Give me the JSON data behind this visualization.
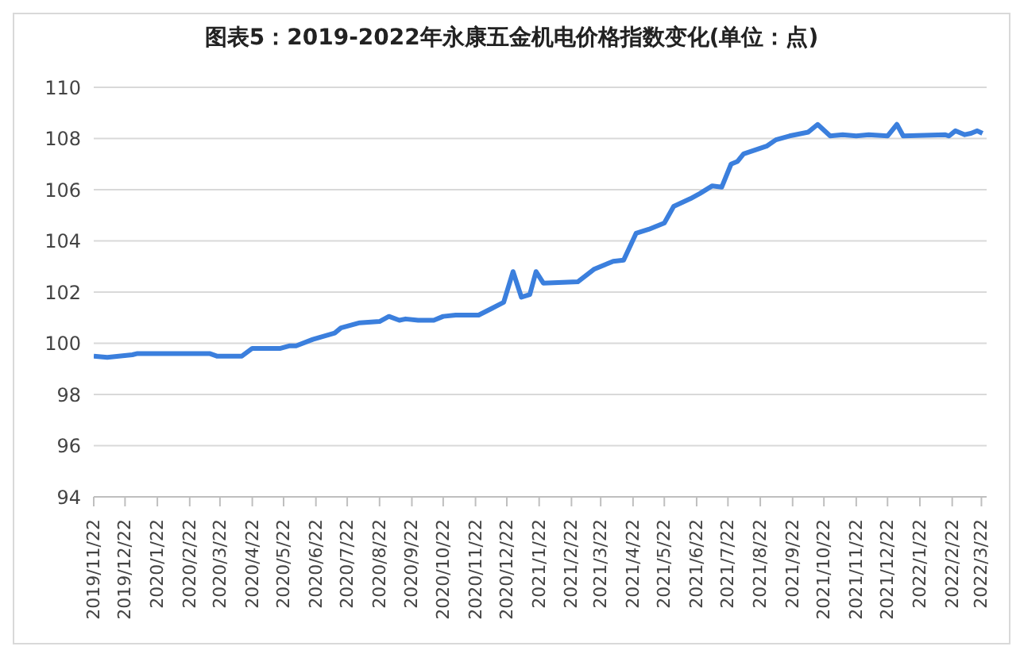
{
  "chart_data": {
    "type": "line",
    "title": "图表5：2019-2022年永康五金机电价格指数变化(单位：点)",
    "x": [
      "2019-11-22",
      "2019-12-05",
      "2019-12-29",
      "2020-01-03",
      "2020-03-12",
      "2020-03-19",
      "2020-04-12",
      "2020-04-22",
      "2020-05-19",
      "2020-05-28",
      "2020-06-03",
      "2020-06-19",
      "2020-07-10",
      "2020-07-16",
      "2020-08-03",
      "2020-08-22",
      "2020-08-31",
      "2020-09-10",
      "2020-09-16",
      "2020-09-28",
      "2020-10-13",
      "2020-10-22",
      "2020-11-03",
      "2020-11-25",
      "2020-12-07",
      "2020-12-19",
      "2020-12-28",
      "2021-01-05",
      "2021-01-13",
      "2021-01-19",
      "2021-01-26",
      "2021-02-28",
      "2021-03-16",
      "2021-04-03",
      "2021-04-13",
      "2021-04-25",
      "2021-05-07",
      "2021-05-22",
      "2021-05-31",
      "2021-06-16",
      "2021-06-25",
      "2021-07-07",
      "2021-07-16",
      "2021-07-25",
      "2021-07-31",
      "2021-08-06",
      "2021-08-28",
      "2021-09-06",
      "2021-09-19",
      "2021-10-07",
      "2021-10-16",
      "2021-10-28",
      "2021-11-09",
      "2021-11-22",
      "2021-12-04",
      "2021-12-22",
      "2021-12-31",
      "2022-01-06",
      "2022-02-15",
      "2022-02-19",
      "2022-02-25",
      "2022-03-06",
      "2022-03-12",
      "2022-03-18",
      "2022-03-23"
    ],
    "series": [
      {
        "color": "#3b7fdd",
        "values": [
          99.5,
          99.45,
          99.55,
          99.6,
          99.6,
          99.5,
          99.5,
          99.8,
          99.8,
          99.9,
          99.9,
          100.15,
          100.4,
          100.6,
          100.8,
          100.85,
          101.05,
          100.9,
          100.95,
          100.9,
          100.9,
          101.05,
          101.1,
          101.1,
          101.35,
          101.6,
          102.8,
          101.8,
          101.9,
          102.8,
          102.35,
          102.4,
          102.9,
          103.2,
          103.25,
          104.3,
          104.45,
          104.7,
          105.35,
          105.65,
          105.85,
          106.15,
          106.1,
          107.0,
          107.1,
          107.4,
          107.7,
          107.95,
          108.1,
          108.25,
          108.55,
          108.1,
          108.15,
          108.1,
          108.15,
          108.1,
          108.55,
          108.1,
          108.15,
          108.1,
          108.3,
          108.15,
          108.2,
          108.3,
          108.2
        ]
      }
    ],
    "xlim": [
      "2019-11-22",
      "2022-03-27"
    ],
    "xticks": [
      {
        "value": "2019-11-22",
        "label": "2019/11/22"
      },
      {
        "value": "2019-12-22",
        "label": "2019/12/22"
      },
      {
        "value": "2020-01-22",
        "label": "2020/1/22"
      },
      {
        "value": "2020-02-22",
        "label": "2020/2/22"
      },
      {
        "value": "2020-03-22",
        "label": "2020/3/22"
      },
      {
        "value": "2020-04-22",
        "label": "2020/4/22"
      },
      {
        "value": "2020-05-22",
        "label": "2020/5/22"
      },
      {
        "value": "2020-06-22",
        "label": "2020/6/22"
      },
      {
        "value": "2020-07-22",
        "label": "2020/7/22"
      },
      {
        "value": "2020-08-22",
        "label": "2020/8/22"
      },
      {
        "value": "2020-09-22",
        "label": "2020/9/22"
      },
      {
        "value": "2020-10-22",
        "label": "2020/10/22"
      },
      {
        "value": "2020-11-22",
        "label": "2020/11/22"
      },
      {
        "value": "2020-12-22",
        "label": "2020/12/22"
      },
      {
        "value": "2021-01-22",
        "label": "2021/1/22"
      },
      {
        "value": "2021-02-22",
        "label": "2021/2/22"
      },
      {
        "value": "2021-03-22",
        "label": "2021/3/22"
      },
      {
        "value": "2021-04-22",
        "label": "2021/4/22"
      },
      {
        "value": "2021-05-22",
        "label": "2021/5/22"
      },
      {
        "value": "2021-06-22",
        "label": "2021/6/22"
      },
      {
        "value": "2021-07-22",
        "label": "2021/7/22"
      },
      {
        "value": "2021-08-22",
        "label": "2021/8/22"
      },
      {
        "value": "2021-09-22",
        "label": "2021/9/22"
      },
      {
        "value": "2021-10-22",
        "label": "2021/10/22"
      },
      {
        "value": "2021-11-22",
        "label": "2021/11/22"
      },
      {
        "value": "2021-12-22",
        "label": "2021/12/22"
      },
      {
        "value": "2022-01-22",
        "label": "2022/1/22"
      },
      {
        "value": "2022-02-22",
        "label": "2022/2/22"
      },
      {
        "value": "2022-03-22",
        "label": "2022/3/22"
      }
    ],
    "ylim": [
      94,
      110
    ],
    "yticks": [
      94,
      96,
      98,
      100,
      102,
      104,
      106,
      108,
      110
    ],
    "grid": "y",
    "marker": "none",
    "line_style": "solid"
  }
}
